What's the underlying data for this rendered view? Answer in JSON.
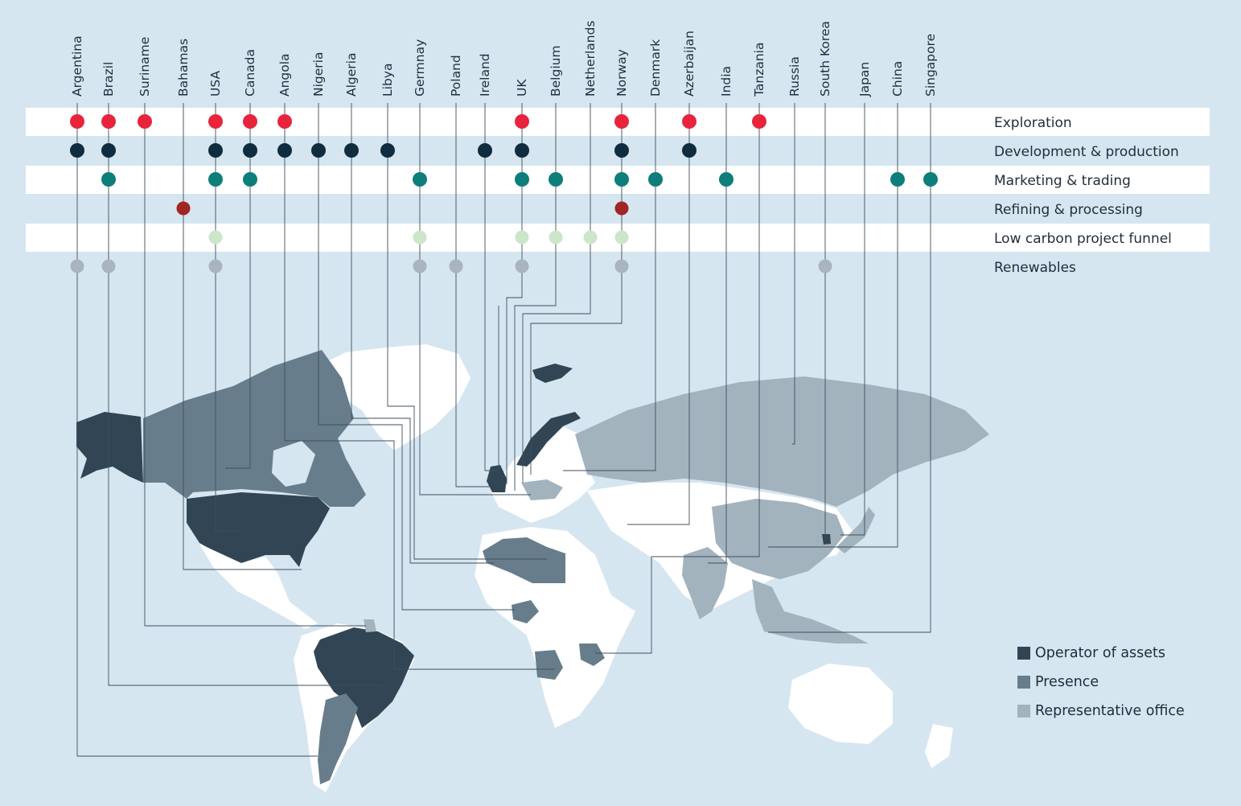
{
  "countries": [
    "Argentina",
    "Brazil",
    "Suriname",
    "Bahamas",
    "USA",
    "Canada",
    "Angola",
    "Nigeria",
    "Algeria",
    "Libya",
    "Germnay",
    "Poland",
    "Ireland",
    "UK",
    "Belgium",
    "Netherlands",
    "Norway",
    "Denmark",
    "Azerbaijan",
    "India",
    "Tanzania",
    "Russia",
    "South Korea",
    "Japan",
    "China",
    "Singapore"
  ],
  "activities": [
    {
      "label": "Exploration",
      "color": "#e8243d",
      "countries": [
        "Argentina",
        "Brazil",
        "Suriname",
        "USA",
        "Canada",
        "Angola",
        "UK",
        "Norway",
        "Azerbaijan",
        "Tanzania"
      ]
    },
    {
      "label": "Development & production",
      "color": "#102c3f",
      "countries": [
        "Argentina",
        "Brazil",
        "USA",
        "Canada",
        "Angola",
        "Nigeria",
        "Algeria",
        "Libya",
        "Ireland",
        "UK",
        "Norway",
        "Azerbaijan"
      ]
    },
    {
      "label": "Marketing & trading",
      "color": "#0e7e7a",
      "countries": [
        "Brazil",
        "USA",
        "Canada",
        "Germnay",
        "UK",
        "Belgium",
        "Norway",
        "Denmark",
        "India",
        "China",
        "Singapore"
      ]
    },
    {
      "label": "Refining & processing",
      "color": "#a02525",
      "countries": [
        "Bahamas",
        "Norway"
      ]
    },
    {
      "label": "Low carbon project funnel",
      "color": "#cbe6c9",
      "countries": [
        "USA",
        "Germnay",
        "UK",
        "Belgium",
        "Netherlands",
        "Norway"
      ]
    },
    {
      "label": "Renewables",
      "color": "#a9b4bc",
      "countries": [
        "Argentina",
        "Brazil",
        "USA",
        "Germnay",
        "Poland",
        "UK",
        "Norway",
        "South Korea"
      ]
    }
  ],
  "legend": [
    {
      "label": "Operator of assets",
      "color": "#314555"
    },
    {
      "label": "Presence",
      "color": "#687d8b"
    },
    {
      "label": "Representative office",
      "color": "#a2b3be"
    }
  ],
  "colors": {
    "background": "#d6e6f0",
    "stripe": "#ffffff",
    "land": "#ffffff",
    "operator": "#314555",
    "presence": "#687d8b",
    "representative": "#a2b3be",
    "leader": "#3d4f5c"
  }
}
